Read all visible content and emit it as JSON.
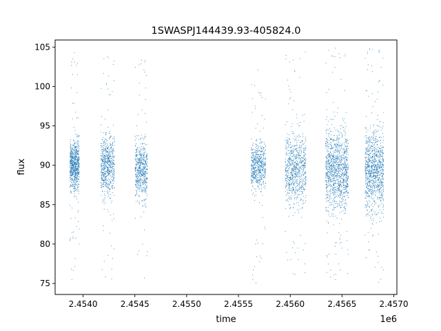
{
  "chart_data": {
    "type": "scatter",
    "title": "1SWASPJ144439.93-405824.0",
    "xlabel": "time",
    "ylabel": "flux",
    "x_offset_label": "1e6",
    "xlim": [
      2453730,
      2457030
    ],
    "ylim": [
      73.6,
      105.9
    ],
    "xticks": [
      {
        "value": 2454000,
        "label": "2.4540"
      },
      {
        "value": 2454500,
        "label": "2.4545"
      },
      {
        "value": 2455000,
        "label": "2.4550"
      },
      {
        "value": 2455500,
        "label": "2.4555"
      },
      {
        "value": 2456000,
        "label": "2.4560"
      },
      {
        "value": 2456500,
        "label": "2.4565"
      },
      {
        "value": 2457000,
        "label": "2.4570"
      }
    ],
    "yticks": [
      {
        "value": 75,
        "label": "75"
      },
      {
        "value": 80,
        "label": "80"
      },
      {
        "value": 85,
        "label": "85"
      },
      {
        "value": 90,
        "label": "90"
      },
      {
        "value": 95,
        "label": "95"
      },
      {
        "value": 100,
        "label": "100"
      },
      {
        "value": 105,
        "label": "105"
      }
    ],
    "grid": false,
    "legend": "none",
    "marker_color": "#1f77b4",
    "observing_seasons": [
      {
        "t_start": 2453870,
        "t_end": 2453960,
        "flux_core": [
          86,
          94
        ],
        "flux_range": [
          75,
          105
        ],
        "density": 1.0
      },
      {
        "t_start": 2454170,
        "t_end": 2454300,
        "flux_core": [
          85,
          95
        ],
        "flux_range": [
          75.5,
          104.5
        ],
        "density": 0.9
      },
      {
        "t_start": 2454500,
        "t_end": 2454620,
        "flux_core": [
          85,
          94
        ],
        "flux_range": [
          75,
          104
        ],
        "density": 0.8
      },
      {
        "t_start": 2455620,
        "t_end": 2455760,
        "flux_core": [
          86,
          94
        ],
        "flux_range": [
          75,
          104
        ],
        "density": 0.8
      },
      {
        "t_start": 2455950,
        "t_end": 2456150,
        "flux_core": [
          84,
          95
        ],
        "flux_range": [
          75.5,
          104.5
        ],
        "density": 1.1
      },
      {
        "t_start": 2456340,
        "t_end": 2456560,
        "flux_core": [
          83,
          96
        ],
        "flux_range": [
          75,
          105
        ],
        "density": 1.6
      },
      {
        "t_start": 2456720,
        "t_end": 2456900,
        "flux_core": [
          83,
          96
        ],
        "flux_range": [
          75,
          105
        ],
        "density": 1.4
      }
    ]
  }
}
